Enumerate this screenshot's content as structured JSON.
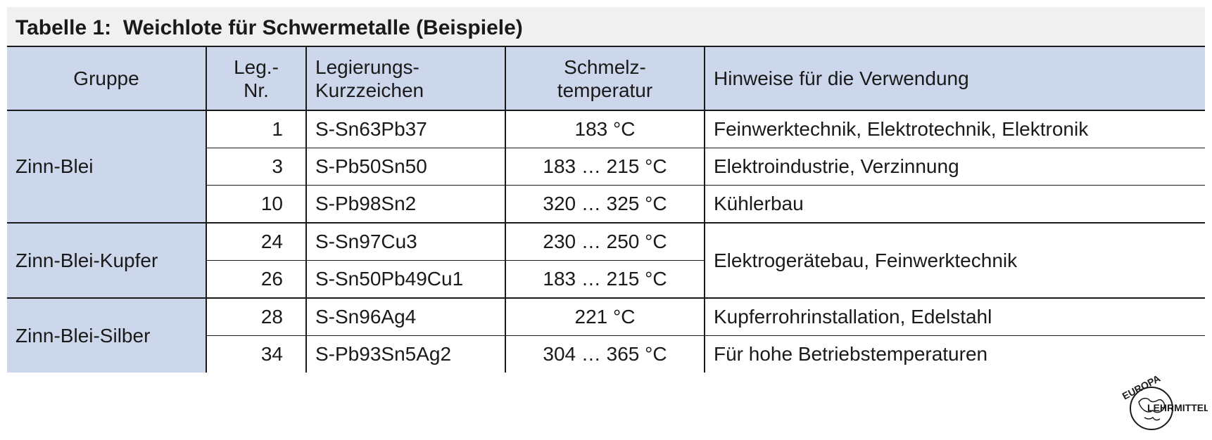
{
  "title": "Tabelle 1:  Weichlote für Schwermetalle (Beispiele)",
  "columns": [
    {
      "lines": [
        "Gruppe"
      ]
    },
    {
      "lines": [
        "Leg.-",
        "Nr."
      ]
    },
    {
      "lines": [
        "Legierungs-",
        "Kurzzeichen"
      ]
    },
    {
      "lines": [
        "Schmelz-",
        "temperatur"
      ]
    },
    {
      "lines": [
        "Hinweise für die Verwendung"
      ]
    }
  ],
  "groups": [
    {
      "name": "Zinn-Blei",
      "rows": [
        {
          "nr": "1",
          "code": "S-Sn63Pb37",
          "temp": "183 °C",
          "note": "Feinwerktechnik, Elektrotechnik, Elektronik"
        },
        {
          "nr": "3",
          "code": "S-Pb50Sn50",
          "temp": "183 … 215 °C",
          "note": "Elektroindustrie, Verzinnung"
        },
        {
          "nr": "10",
          "code": "S-Pb98Sn2",
          "temp": "320 … 325 °C",
          "note": "Kühlerbau"
        }
      ]
    },
    {
      "name": "Zinn-Blei-Kupfer",
      "shared_note": "Elektrogerätebau, Feinwerktechnik",
      "rows": [
        {
          "nr": "24",
          "code": "S-Sn97Cu3",
          "temp": "230 … 250 °C"
        },
        {
          "nr": "26",
          "code": "S-Sn50Pb49Cu1",
          "temp": "183 … 215 °C"
        }
      ]
    },
    {
      "name": "Zinn-Blei-Silber",
      "rows": [
        {
          "nr": "28",
          "code": "S-Sn96Ag4",
          "temp": "221 °C",
          "note": "Kupferrohrinstallation, Edelstahl"
        },
        {
          "nr": "34",
          "code": "S-Pb93Sn5Ag2",
          "temp": "304 … 365 °C",
          "note": "Für hohe Betriebstemperaturen"
        }
      ]
    }
  ],
  "logo": {
    "top": "EUROPA",
    "bottom": "LEHRMITTEL"
  },
  "colors": {
    "header_fill": "#cdd7ec",
    "title_band": "#f0f0f0",
    "lines": "#1a1a1a"
  }
}
